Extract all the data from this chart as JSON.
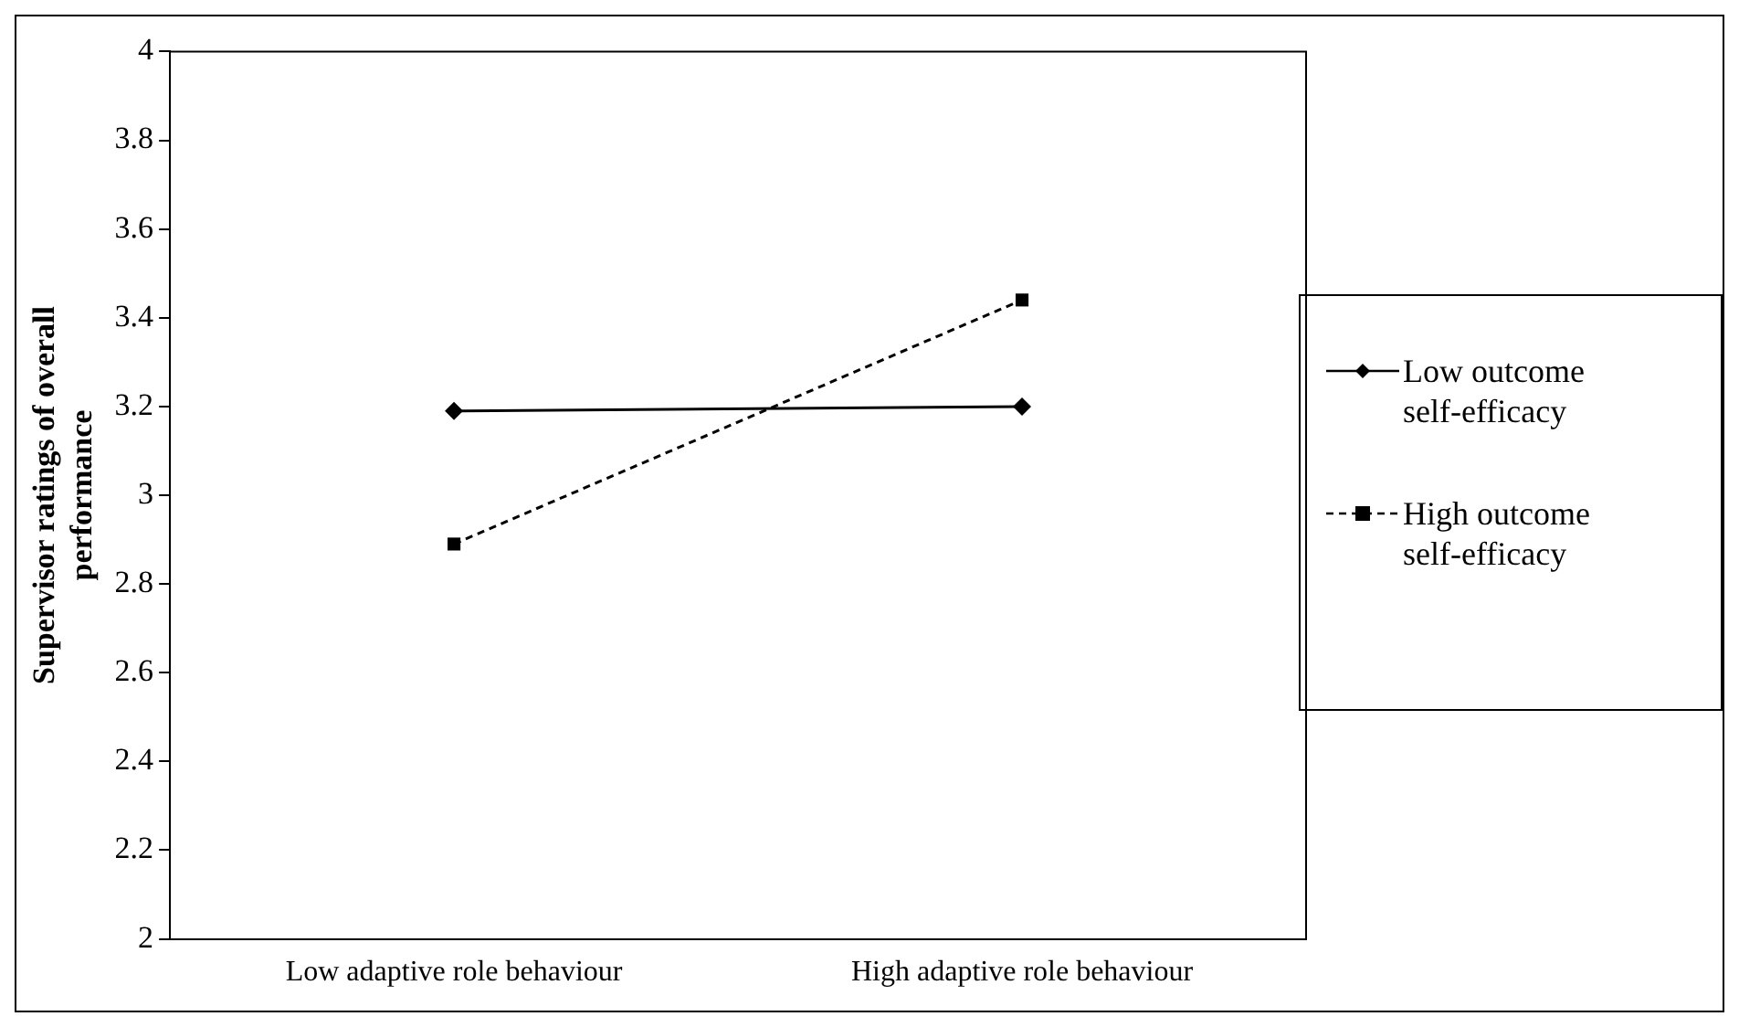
{
  "chart_data": {
    "type": "line",
    "ylabel": "Supervisor ratings of overall performance",
    "categories": [
      "Low adaptive role behaviour",
      "High adaptive role behaviour"
    ],
    "series": [
      {
        "name": "Low outcome self-efficacy",
        "color": "#000000",
        "values": [
          3.19,
          3.2
        ],
        "marker": "diamond",
        "line_style": "solid"
      },
      {
        "name": "High outcome self-efficacy",
        "color": "#000000",
        "values": [
          2.89,
          3.44
        ],
        "marker": "square",
        "line_style": "dashed"
      }
    ],
    "ylim": [
      2,
      4
    ],
    "yticks": [
      2,
      2.2,
      2.4,
      2.6,
      2.8,
      3,
      3.2,
      3.4,
      3.6,
      3.8,
      4
    ],
    "grid": false,
    "legend": "right"
  }
}
